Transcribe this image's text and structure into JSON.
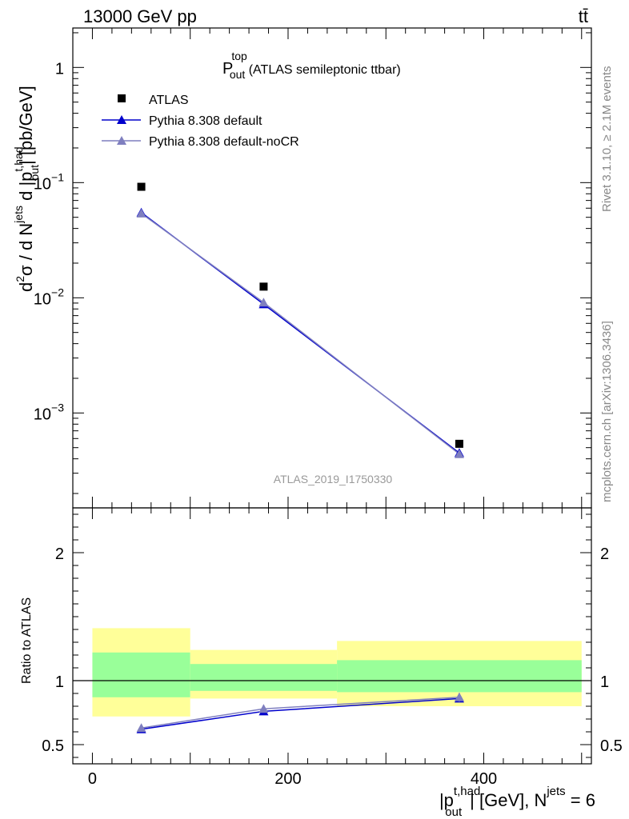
{
  "header": {
    "energy_label": "13000 GeV pp",
    "process_label": "tt̄"
  },
  "side_labels": {
    "rivet": "Rivet 3.1.10, ≥ 2.1M events",
    "mcplots": "mcplots.cern.ch [arXiv:1306.3436]"
  },
  "chart_data": [
    {
      "type": "scatter",
      "panel": "main",
      "title_main": "P",
      "title_sup": "top",
      "title_sub": "out",
      "title_rest": " (ATLAS semileptonic ttbar)",
      "watermark": "ATLAS_2019_I1750330",
      "y_scale": "log",
      "ylim": [
        0.00015,
        2.2
      ],
      "xlim": [
        -20,
        510
      ],
      "y_ticks": [
        {
          "value": 1,
          "base": "1",
          "exp": ""
        },
        {
          "value": 0.1,
          "base": "10",
          "exp": "−1"
        },
        {
          "value": 0.01,
          "base": "10",
          "exp": "−2"
        },
        {
          "value": 0.001,
          "base": "10",
          "exp": "−3"
        }
      ],
      "ylabel": "d²σ / d N^jets d |p_out^t,had| [pb/GeV]",
      "ylabel_parts": {
        "d": "d",
        "two": "2",
        "sigma": "σ / d N",
        "jets": "jets",
        "d2": " d |p",
        "sup": "t,had",
        "sub": "out",
        "rest": "| [pb/GeV]"
      },
      "legend_position": "top-left",
      "series": [
        {
          "name": "ATLAS",
          "color": "#000000",
          "marker": "square",
          "line": false,
          "x": [
            50,
            175,
            375
          ],
          "y": [
            0.092,
            0.0125,
            0.00054
          ]
        },
        {
          "name": "Pythia 8.308 default",
          "color": "#0000cc",
          "marker": "triangle",
          "line": true,
          "x": [
            50,
            175,
            375
          ],
          "y": [
            0.055,
            0.0088,
            0.00045
          ]
        },
        {
          "name": "Pythia 8.308 default-noCR",
          "color": "#7f7fbf",
          "marker": "triangle",
          "line": true,
          "x": [
            50,
            175,
            375
          ],
          "y": [
            0.054,
            0.0091,
            0.00044
          ]
        }
      ]
    },
    {
      "type": "line",
      "panel": "ratio",
      "ylabel": "Ratio to ATLAS",
      "ylim": [
        0.35,
        2.35
      ],
      "xlim": [
        -20,
        510
      ],
      "y_ticks": [
        0.5,
        1,
        2
      ],
      "y_tick_labels": [
        "0.5",
        "1",
        "2"
      ],
      "x_ticks": [
        0,
        200,
        400
      ],
      "x_tick_labels": [
        "0",
        "200",
        "400"
      ],
      "xlabel_parts": {
        "pre": "|p",
        "sup": "t,had",
        "sub": "out",
        "mid": "| [GeV], N",
        "sup2": "jets",
        "post": " = 6"
      },
      "bands": [
        {
          "x": [
            0,
            100
          ],
          "yellow": [
            0.72,
            1.41
          ],
          "green": [
            0.87,
            1.22
          ]
        },
        {
          "x": [
            100,
            250
          ],
          "yellow": [
            0.86,
            1.24
          ],
          "green": [
            0.92,
            1.13
          ]
        },
        {
          "x": [
            250,
            500
          ],
          "yellow": [
            0.8,
            1.31
          ],
          "green": [
            0.91,
            1.16
          ]
        }
      ],
      "band_colors": {
        "yellow": "#ffff99",
        "green": "#99ff99"
      },
      "reference_line": 1,
      "series": [
        {
          "name": "Pythia 8.308 default",
          "color": "#0000cc",
          "x": [
            50,
            175,
            375
          ],
          "y": [
            0.62,
            0.76,
            0.86
          ]
        },
        {
          "name": "Pythia 8.308 default-noCR",
          "color": "#7f7fbf",
          "x": [
            50,
            175,
            375
          ],
          "y": [
            0.63,
            0.78,
            0.87
          ],
          "yerr": [
            0.005,
            0.01,
            0.035
          ]
        }
      ]
    }
  ]
}
